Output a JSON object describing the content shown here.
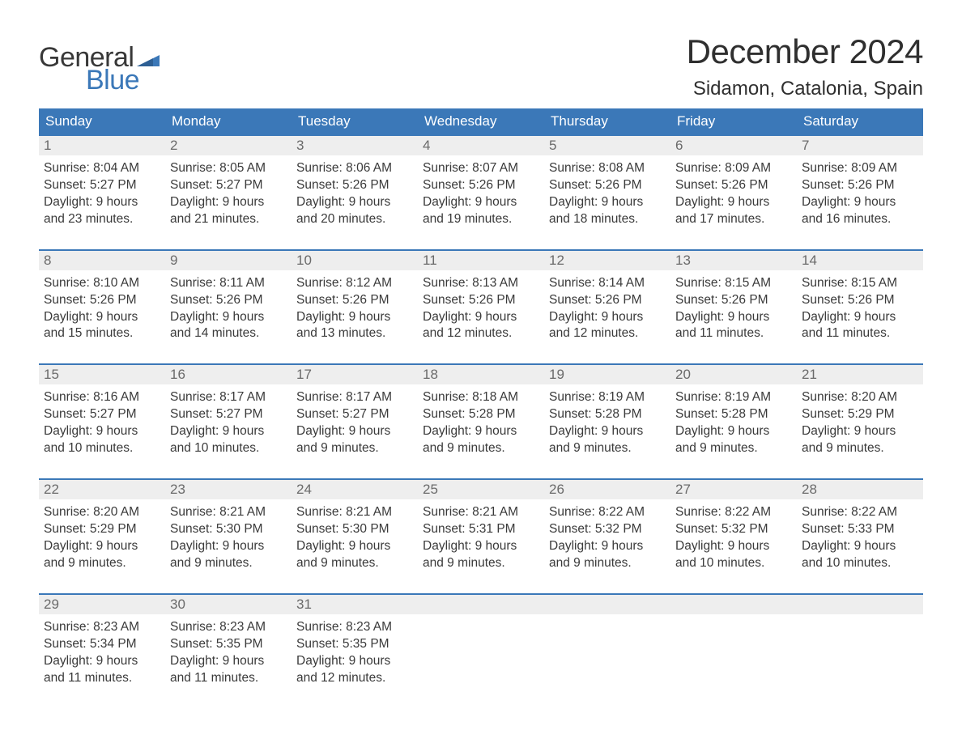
{
  "brand": {
    "general": "General",
    "blue": "Blue"
  },
  "title": "December 2024",
  "location": "Sidamon, Catalonia, Spain",
  "colors": {
    "header_bg": "#3b78b8",
    "header_text": "#ffffff",
    "daynum_bg": "#eeeeee",
    "daynum_text": "#6a6a6a",
    "border": "#3b78b8",
    "body_text": "#3a3a3a",
    "logo_blue": "#3b78b8",
    "logo_dark": "#383838",
    "page_bg": "#ffffff"
  },
  "day_headers": [
    "Sunday",
    "Monday",
    "Tuesday",
    "Wednesday",
    "Thursday",
    "Friday",
    "Saturday"
  ],
  "weeks": [
    [
      {
        "num": "1",
        "sunrise": "Sunrise: 8:04 AM",
        "sunset": "Sunset: 5:27 PM",
        "d1": "Daylight: 9 hours",
        "d2": "and 23 minutes."
      },
      {
        "num": "2",
        "sunrise": "Sunrise: 8:05 AM",
        "sunset": "Sunset: 5:27 PM",
        "d1": "Daylight: 9 hours",
        "d2": "and 21 minutes."
      },
      {
        "num": "3",
        "sunrise": "Sunrise: 8:06 AM",
        "sunset": "Sunset: 5:26 PM",
        "d1": "Daylight: 9 hours",
        "d2": "and 20 minutes."
      },
      {
        "num": "4",
        "sunrise": "Sunrise: 8:07 AM",
        "sunset": "Sunset: 5:26 PM",
        "d1": "Daylight: 9 hours",
        "d2": "and 19 minutes."
      },
      {
        "num": "5",
        "sunrise": "Sunrise: 8:08 AM",
        "sunset": "Sunset: 5:26 PM",
        "d1": "Daylight: 9 hours",
        "d2": "and 18 minutes."
      },
      {
        "num": "6",
        "sunrise": "Sunrise: 8:09 AM",
        "sunset": "Sunset: 5:26 PM",
        "d1": "Daylight: 9 hours",
        "d2": "and 17 minutes."
      },
      {
        "num": "7",
        "sunrise": "Sunrise: 8:09 AM",
        "sunset": "Sunset: 5:26 PM",
        "d1": "Daylight: 9 hours",
        "d2": "and 16 minutes."
      }
    ],
    [
      {
        "num": "8",
        "sunrise": "Sunrise: 8:10 AM",
        "sunset": "Sunset: 5:26 PM",
        "d1": "Daylight: 9 hours",
        "d2": "and 15 minutes."
      },
      {
        "num": "9",
        "sunrise": "Sunrise: 8:11 AM",
        "sunset": "Sunset: 5:26 PM",
        "d1": "Daylight: 9 hours",
        "d2": "and 14 minutes."
      },
      {
        "num": "10",
        "sunrise": "Sunrise: 8:12 AM",
        "sunset": "Sunset: 5:26 PM",
        "d1": "Daylight: 9 hours",
        "d2": "and 13 minutes."
      },
      {
        "num": "11",
        "sunrise": "Sunrise: 8:13 AM",
        "sunset": "Sunset: 5:26 PM",
        "d1": "Daylight: 9 hours",
        "d2": "and 12 minutes."
      },
      {
        "num": "12",
        "sunrise": "Sunrise: 8:14 AM",
        "sunset": "Sunset: 5:26 PM",
        "d1": "Daylight: 9 hours",
        "d2": "and 12 minutes."
      },
      {
        "num": "13",
        "sunrise": "Sunrise: 8:15 AM",
        "sunset": "Sunset: 5:26 PM",
        "d1": "Daylight: 9 hours",
        "d2": "and 11 minutes."
      },
      {
        "num": "14",
        "sunrise": "Sunrise: 8:15 AM",
        "sunset": "Sunset: 5:26 PM",
        "d1": "Daylight: 9 hours",
        "d2": "and 11 minutes."
      }
    ],
    [
      {
        "num": "15",
        "sunrise": "Sunrise: 8:16 AM",
        "sunset": "Sunset: 5:27 PM",
        "d1": "Daylight: 9 hours",
        "d2": "and 10 minutes."
      },
      {
        "num": "16",
        "sunrise": "Sunrise: 8:17 AM",
        "sunset": "Sunset: 5:27 PM",
        "d1": "Daylight: 9 hours",
        "d2": "and 10 minutes."
      },
      {
        "num": "17",
        "sunrise": "Sunrise: 8:17 AM",
        "sunset": "Sunset: 5:27 PM",
        "d1": "Daylight: 9 hours",
        "d2": "and 9 minutes."
      },
      {
        "num": "18",
        "sunrise": "Sunrise: 8:18 AM",
        "sunset": "Sunset: 5:28 PM",
        "d1": "Daylight: 9 hours",
        "d2": "and 9 minutes."
      },
      {
        "num": "19",
        "sunrise": "Sunrise: 8:19 AM",
        "sunset": "Sunset: 5:28 PM",
        "d1": "Daylight: 9 hours",
        "d2": "and 9 minutes."
      },
      {
        "num": "20",
        "sunrise": "Sunrise: 8:19 AM",
        "sunset": "Sunset: 5:28 PM",
        "d1": "Daylight: 9 hours",
        "d2": "and 9 minutes."
      },
      {
        "num": "21",
        "sunrise": "Sunrise: 8:20 AM",
        "sunset": "Sunset: 5:29 PM",
        "d1": "Daylight: 9 hours",
        "d2": "and 9 minutes."
      }
    ],
    [
      {
        "num": "22",
        "sunrise": "Sunrise: 8:20 AM",
        "sunset": "Sunset: 5:29 PM",
        "d1": "Daylight: 9 hours",
        "d2": "and 9 minutes."
      },
      {
        "num": "23",
        "sunrise": "Sunrise: 8:21 AM",
        "sunset": "Sunset: 5:30 PM",
        "d1": "Daylight: 9 hours",
        "d2": "and 9 minutes."
      },
      {
        "num": "24",
        "sunrise": "Sunrise: 8:21 AM",
        "sunset": "Sunset: 5:30 PM",
        "d1": "Daylight: 9 hours",
        "d2": "and 9 minutes."
      },
      {
        "num": "25",
        "sunrise": "Sunrise: 8:21 AM",
        "sunset": "Sunset: 5:31 PM",
        "d1": "Daylight: 9 hours",
        "d2": "and 9 minutes."
      },
      {
        "num": "26",
        "sunrise": "Sunrise: 8:22 AM",
        "sunset": "Sunset: 5:32 PM",
        "d1": "Daylight: 9 hours",
        "d2": "and 9 minutes."
      },
      {
        "num": "27",
        "sunrise": "Sunrise: 8:22 AM",
        "sunset": "Sunset: 5:32 PM",
        "d1": "Daylight: 9 hours",
        "d2": "and 10 minutes."
      },
      {
        "num": "28",
        "sunrise": "Sunrise: 8:22 AM",
        "sunset": "Sunset: 5:33 PM",
        "d1": "Daylight: 9 hours",
        "d2": "and 10 minutes."
      }
    ],
    [
      {
        "num": "29",
        "sunrise": "Sunrise: 8:23 AM",
        "sunset": "Sunset: 5:34 PM",
        "d1": "Daylight: 9 hours",
        "d2": "and 11 minutes."
      },
      {
        "num": "30",
        "sunrise": "Sunrise: 8:23 AM",
        "sunset": "Sunset: 5:35 PM",
        "d1": "Daylight: 9 hours",
        "d2": "and 11 minutes."
      },
      {
        "num": "31",
        "sunrise": "Sunrise: 8:23 AM",
        "sunset": "Sunset: 5:35 PM",
        "d1": "Daylight: 9 hours",
        "d2": "and 12 minutes."
      },
      null,
      null,
      null,
      null
    ]
  ]
}
